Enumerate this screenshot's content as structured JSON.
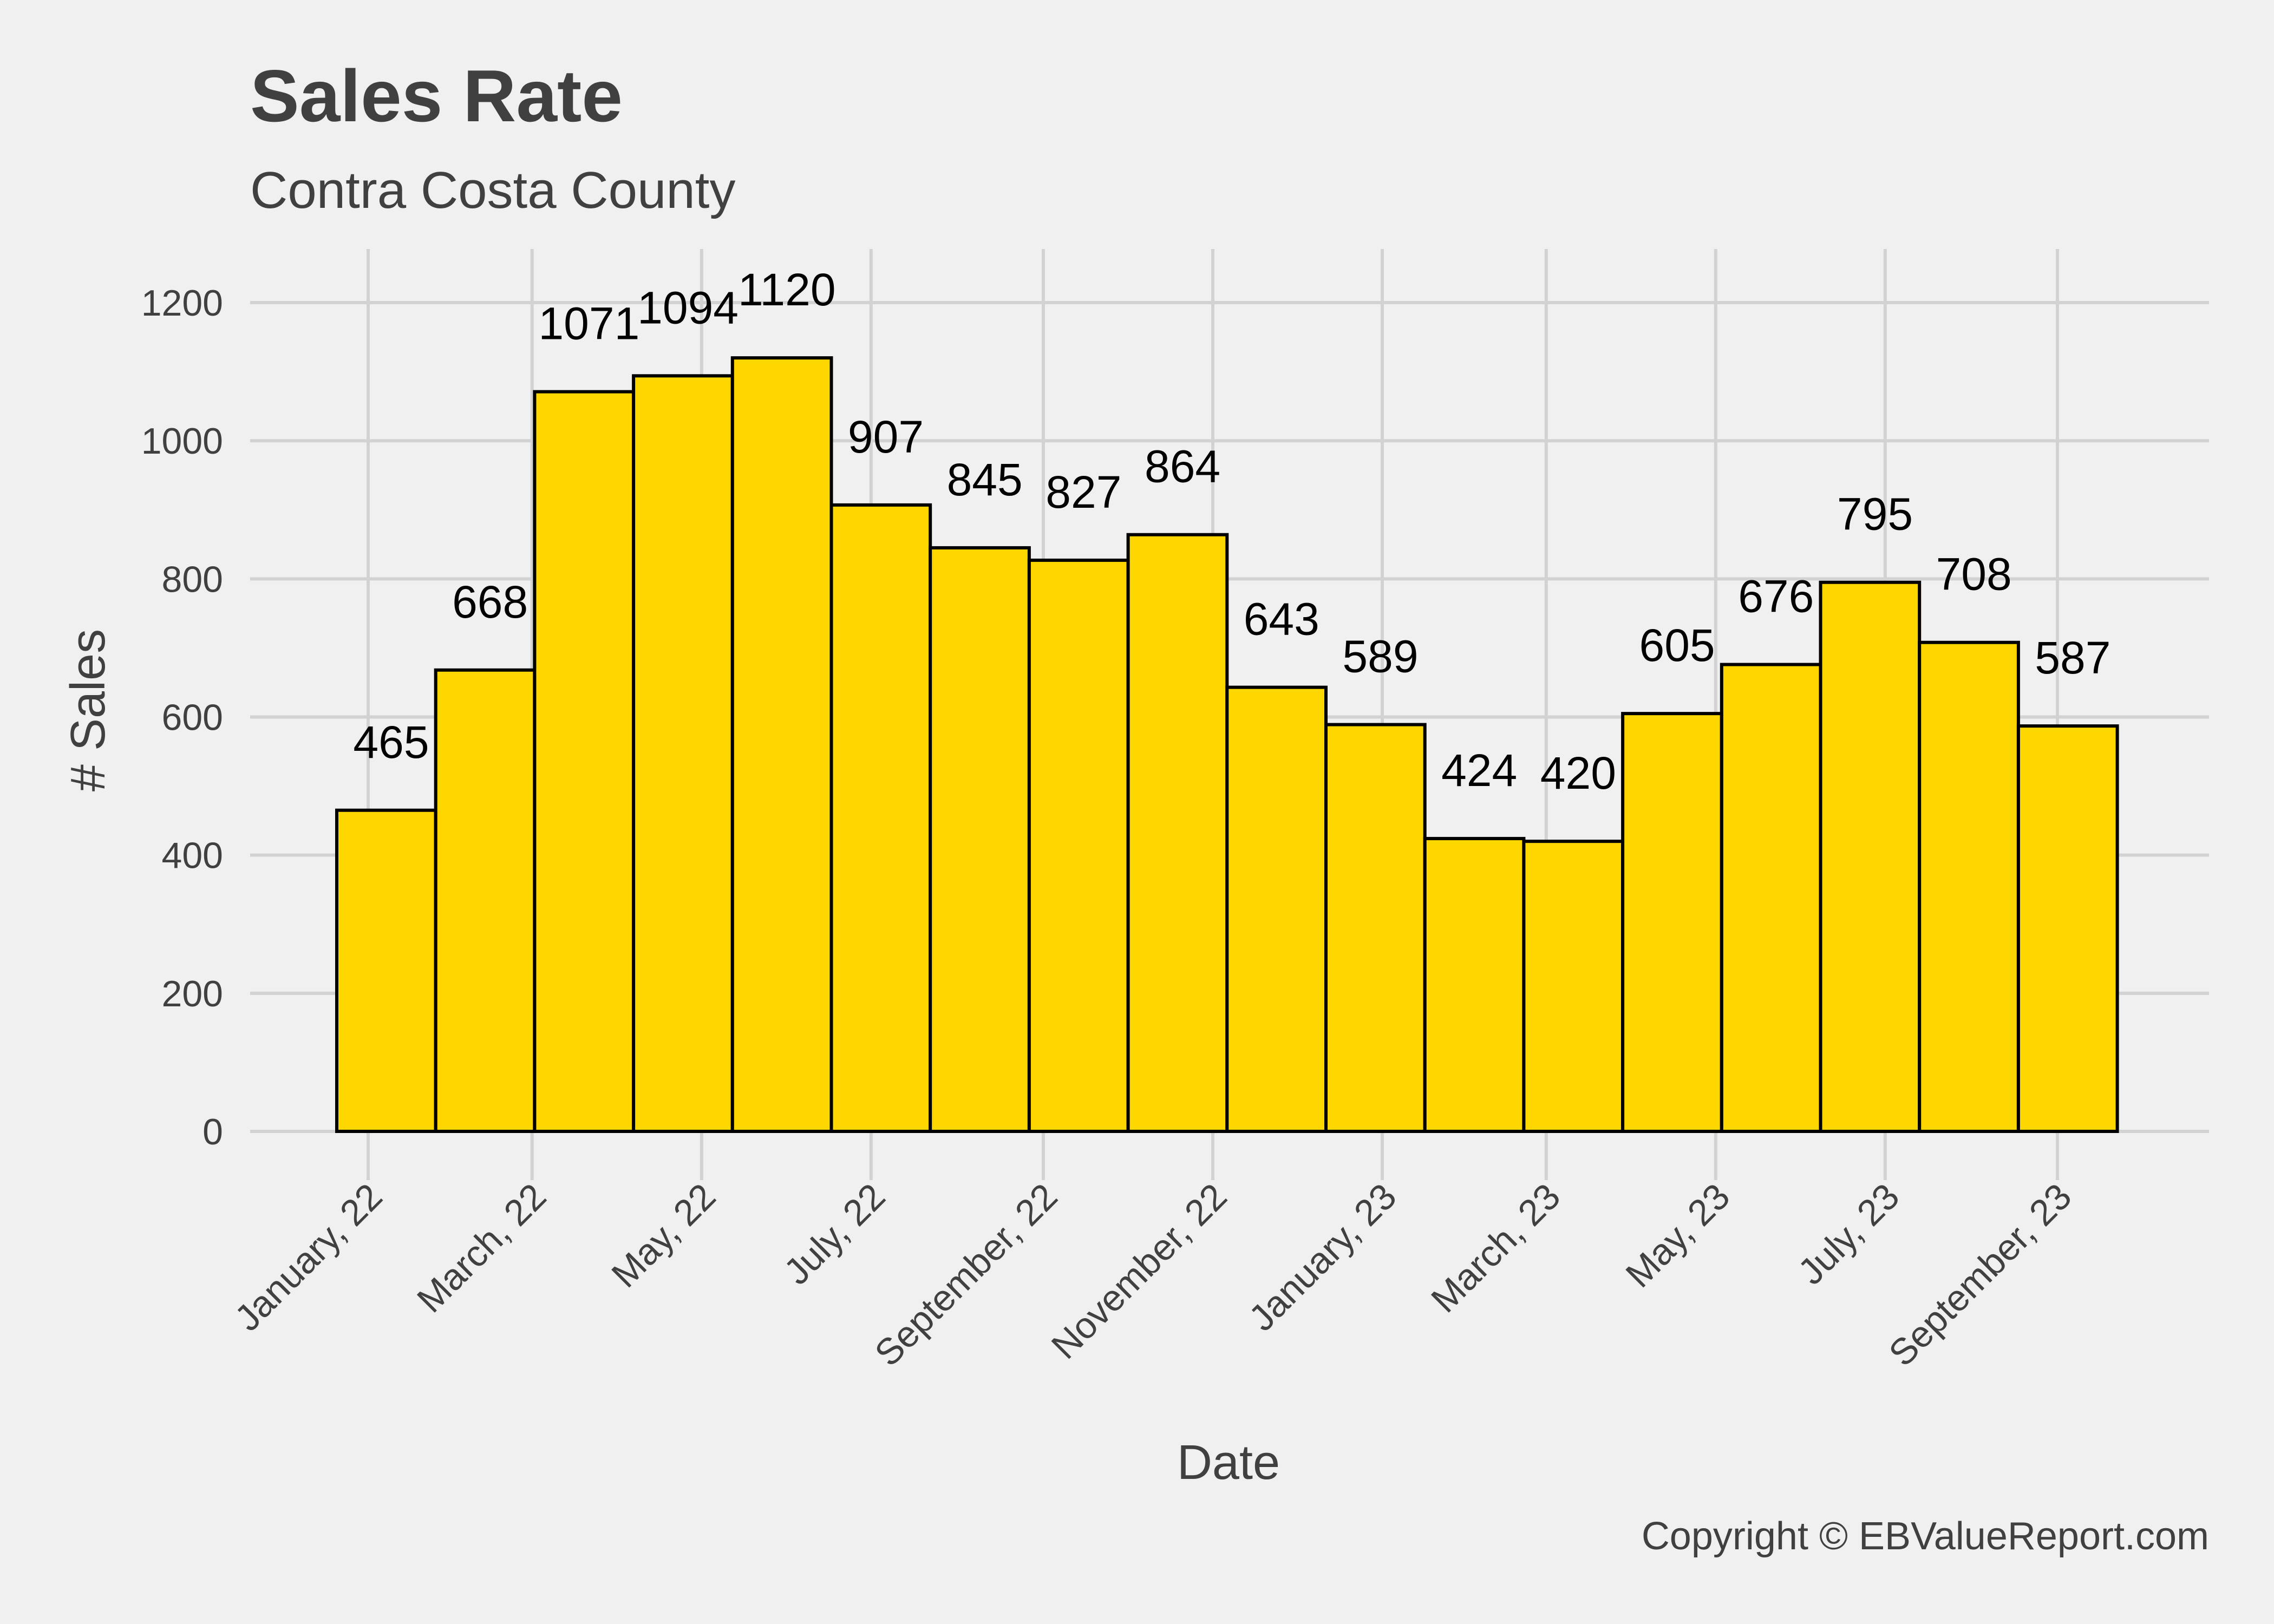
{
  "chart_data": {
    "type": "bar",
    "title": "Sales Rate",
    "subtitle": "Contra Costa County",
    "xlabel": "Date",
    "ylabel": "# Sales",
    "caption": "Copyright  © EBValueReport.com",
    "bars": [
      {
        "month": "2022-01",
        "value": 465
      },
      {
        "month": "2022-02",
        "value": 668
      },
      {
        "month": "2022-03",
        "value": 1071
      },
      {
        "month": "2022-04",
        "value": 1094
      },
      {
        "month": "2022-05",
        "value": 1120
      },
      {
        "month": "2022-06",
        "value": 907
      },
      {
        "month": "2022-07",
        "value": 845
      },
      {
        "month": "2022-08",
        "value": 827
      },
      {
        "month": "2022-09",
        "value": 864
      },
      {
        "month": "2022-10",
        "value": 643
      },
      {
        "month": "2022-11",
        "value": 589
      },
      {
        "month": "2022-12",
        "value": 424
      },
      {
        "month": "2023-01",
        "value": 420
      },
      {
        "month": "2023-02",
        "value": 605
      },
      {
        "month": "2023-03",
        "value": 676
      },
      {
        "month": "2023-04",
        "value": 795
      },
      {
        "month": "2023-05",
        "value": 708
      },
      {
        "month": "2023-06",
        "value": 587
      }
    ],
    "x_ticks": [
      {
        "date": "2022-01-01",
        "label": "January, 22"
      },
      {
        "date": "2022-03-01",
        "label": "March, 22"
      },
      {
        "date": "2022-05-01",
        "label": "May, 22"
      },
      {
        "date": "2022-07-01",
        "label": "July, 22"
      },
      {
        "date": "2022-09-01",
        "label": "September, 22"
      },
      {
        "date": "2022-11-01",
        "label": "November, 22"
      },
      {
        "date": "2023-01-01",
        "label": "January, 23"
      },
      {
        "date": "2023-03-01",
        "label": "March, 23"
      },
      {
        "date": "2023-05-01",
        "label": "May, 23"
      },
      {
        "date": "2023-07-01",
        "label": "July, 23"
      },
      {
        "date": "2023-09-01",
        "label": "September, 23"
      }
    ],
    "yticks": [
      0,
      200,
      400,
      600,
      800,
      1000,
      1200
    ],
    "ylim": [
      0,
      1200
    ],
    "grid": true,
    "legend": false,
    "colors": {
      "bar_fill": "#FFD700",
      "bar_stroke": "#000000",
      "background": "#F0F0F0",
      "grid": "#D2D2D2",
      "text": "#404040"
    }
  }
}
